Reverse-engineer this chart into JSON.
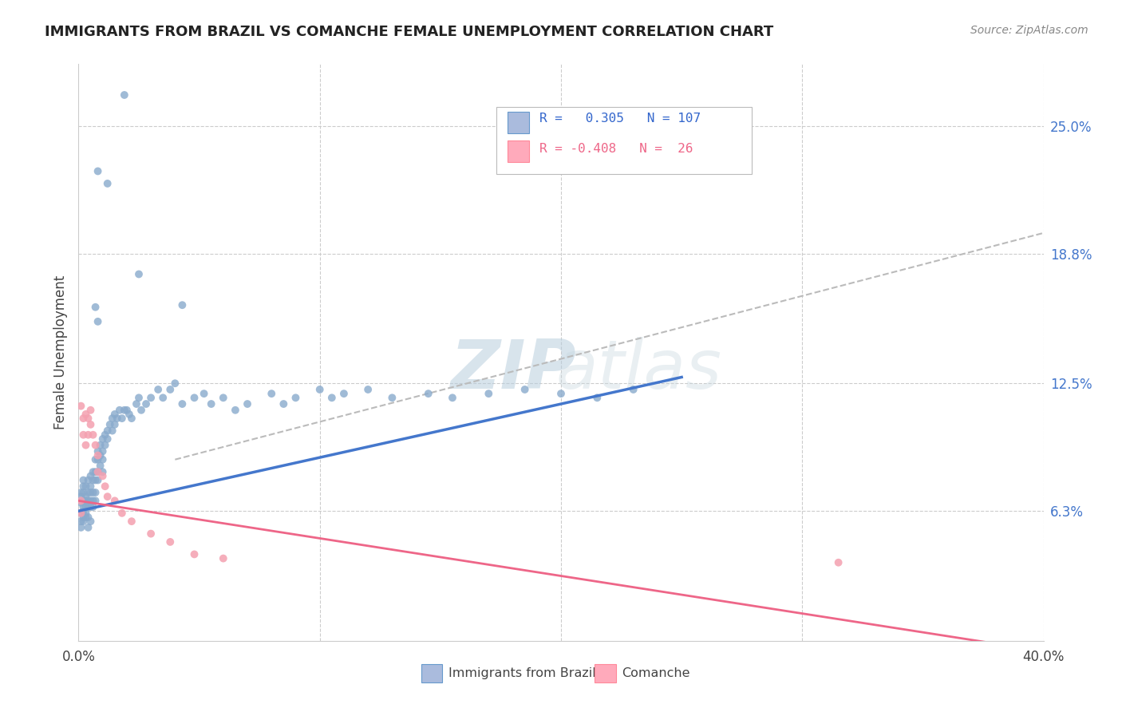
{
  "title": "IMMIGRANTS FROM BRAZIL VS COMANCHE FEMALE UNEMPLOYMENT CORRELATION CHART",
  "source": "Source: ZipAtlas.com",
  "ylabel": "Female Unemployment",
  "right_yticks": [
    "25.0%",
    "18.8%",
    "12.5%",
    "6.3%"
  ],
  "right_ytick_vals": [
    0.25,
    0.188,
    0.125,
    0.063
  ],
  "xlim": [
    0.0,
    0.4
  ],
  "ylim": [
    0.0,
    0.28
  ],
  "brazil_color": "#89AACC",
  "comanche_color": "#F4A0B0",
  "brazil_line_color": "#4477CC",
  "comanche_line_color": "#EE6688",
  "gray_line_color": "#BBBBBB",
  "brazil_R": 0.305,
  "brazil_N": 107,
  "comanche_R": -0.408,
  "comanche_N": 26,
  "brazil_line_x0": 0.0,
  "brazil_line_x1": 0.25,
  "brazil_line_y0": 0.063,
  "brazil_line_y1": 0.128,
  "comanche_line_x0": 0.0,
  "comanche_line_x1": 0.4,
  "comanche_line_y0": 0.068,
  "comanche_line_y1": -0.005,
  "gray_line_x0": 0.04,
  "gray_line_x1": 0.4,
  "gray_line_y0": 0.088,
  "gray_line_y1": 0.198,
  "brazil_x": [
    0.001,
    0.001,
    0.001,
    0.001,
    0.001,
    0.001,
    0.002,
    0.002,
    0.002,
    0.002,
    0.002,
    0.002,
    0.002,
    0.002,
    0.003,
    0.003,
    0.003,
    0.003,
    0.003,
    0.003,
    0.004,
    0.004,
    0.004,
    0.004,
    0.004,
    0.004,
    0.005,
    0.005,
    0.005,
    0.005,
    0.005,
    0.005,
    0.006,
    0.006,
    0.006,
    0.006,
    0.006,
    0.007,
    0.007,
    0.007,
    0.007,
    0.007,
    0.008,
    0.008,
    0.008,
    0.008,
    0.009,
    0.009,
    0.009,
    0.01,
    0.01,
    0.01,
    0.01,
    0.011,
    0.011,
    0.012,
    0.012,
    0.013,
    0.014,
    0.014,
    0.015,
    0.015,
    0.016,
    0.017,
    0.018,
    0.019,
    0.02,
    0.021,
    0.022,
    0.024,
    0.025,
    0.026,
    0.028,
    0.03,
    0.033,
    0.035,
    0.038,
    0.04,
    0.043,
    0.048,
    0.052,
    0.055,
    0.06,
    0.065,
    0.07,
    0.08,
    0.085,
    0.09,
    0.1,
    0.105,
    0.11,
    0.12,
    0.13,
    0.145,
    0.155,
    0.17,
    0.185,
    0.2,
    0.215,
    0.23,
    0.019,
    0.008,
    0.012,
    0.007,
    0.008,
    0.043,
    0.025
  ],
  "brazil_y": [
    0.062,
    0.067,
    0.07,
    0.058,
    0.055,
    0.072,
    0.065,
    0.06,
    0.068,
    0.072,
    0.058,
    0.075,
    0.078,
    0.063,
    0.07,
    0.065,
    0.062,
    0.068,
    0.075,
    0.06,
    0.068,
    0.072,
    0.065,
    0.078,
    0.06,
    0.055,
    0.075,
    0.08,
    0.068,
    0.072,
    0.065,
    0.058,
    0.082,
    0.078,
    0.072,
    0.068,
    0.065,
    0.088,
    0.082,
    0.078,
    0.072,
    0.068,
    0.092,
    0.088,
    0.082,
    0.078,
    0.095,
    0.09,
    0.085,
    0.098,
    0.092,
    0.088,
    0.082,
    0.1,
    0.095,
    0.102,
    0.098,
    0.105,
    0.108,
    0.102,
    0.11,
    0.105,
    0.108,
    0.112,
    0.108,
    0.112,
    0.112,
    0.11,
    0.108,
    0.115,
    0.118,
    0.112,
    0.115,
    0.118,
    0.122,
    0.118,
    0.122,
    0.125,
    0.115,
    0.118,
    0.12,
    0.115,
    0.118,
    0.112,
    0.115,
    0.12,
    0.115,
    0.118,
    0.122,
    0.118,
    0.12,
    0.122,
    0.118,
    0.12,
    0.118,
    0.12,
    0.122,
    0.12,
    0.118,
    0.122,
    0.265,
    0.228,
    0.222,
    0.162,
    0.155,
    0.163,
    0.178
  ],
  "comanche_x": [
    0.001,
    0.001,
    0.001,
    0.002,
    0.002,
    0.003,
    0.003,
    0.004,
    0.004,
    0.005,
    0.005,
    0.006,
    0.007,
    0.008,
    0.008,
    0.01,
    0.011,
    0.012,
    0.015,
    0.018,
    0.022,
    0.03,
    0.038,
    0.048,
    0.06,
    0.315
  ],
  "comanche_y": [
    0.114,
    0.068,
    0.062,
    0.1,
    0.108,
    0.11,
    0.095,
    0.108,
    0.1,
    0.112,
    0.105,
    0.1,
    0.095,
    0.09,
    0.082,
    0.08,
    0.075,
    0.07,
    0.068,
    0.062,
    0.058,
    0.052,
    0.048,
    0.042,
    0.04,
    0.038
  ]
}
